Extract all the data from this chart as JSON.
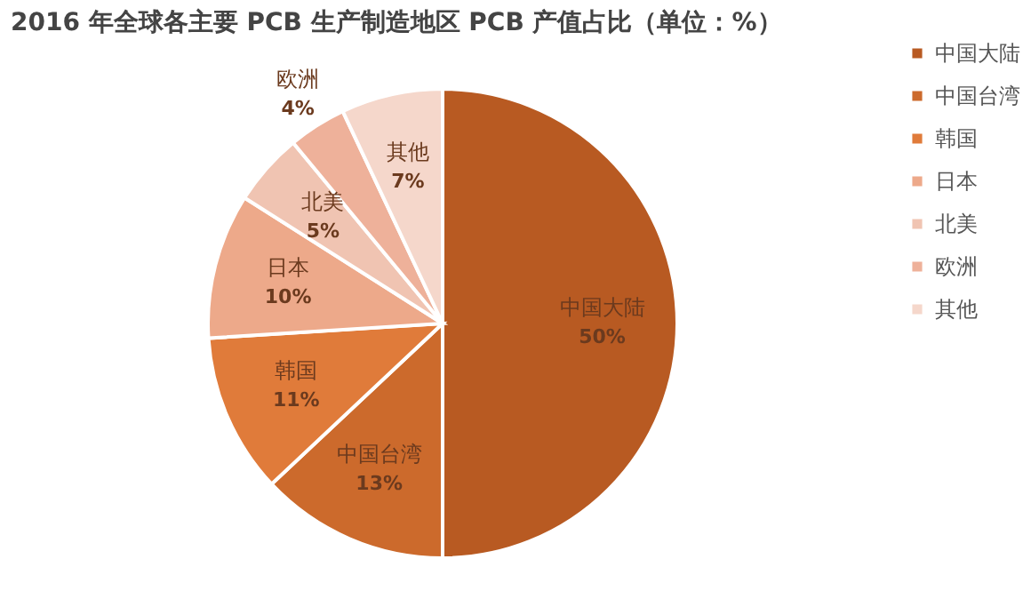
{
  "chart_data": {
    "type": "pie",
    "title": "2016 年全球各主要 PCB 生产制造地区 PCB 产值占比（单位：%）",
    "categories": [
      "中国大陆",
      "中国台湾",
      "韩国",
      "日本",
      "北美",
      "欧洲",
      "其他"
    ],
    "values": [
      50,
      13,
      11,
      10,
      5,
      4,
      7
    ],
    "value_labels": [
      "50%",
      "13%",
      "11%",
      "10%",
      "5%",
      "4%",
      "7%"
    ],
    "colors": [
      "#b85a22",
      "#cc6a2c",
      "#e07b3a",
      "#eda98a",
      "#f0c4b2",
      "#eeb19a",
      "#f5d7cb"
    ],
    "legend": "right"
  }
}
